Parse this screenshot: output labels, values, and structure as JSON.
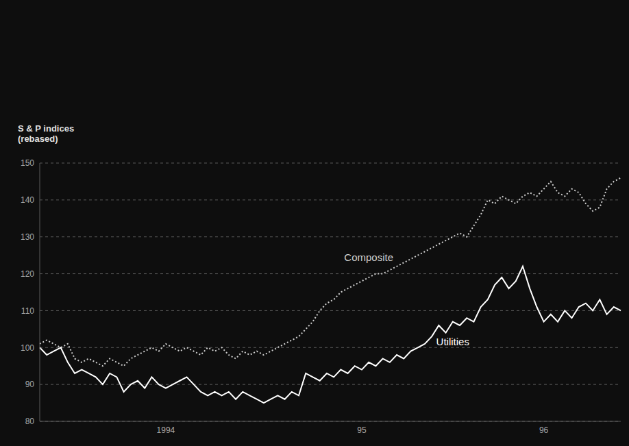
{
  "chart_data": {
    "type": "line",
    "y_label": "S & P indices (rebased)",
    "categories": [
      null,
      null,
      null,
      null,
      null,
      null,
      null,
      null,
      null,
      null,
      null,
      null,
      null,
      null,
      null,
      null,
      null,
      null,
      "1994",
      null,
      null,
      null,
      null,
      null,
      null,
      null,
      null,
      null,
      null,
      null,
      null,
      null,
      null,
      null,
      null,
      null,
      null,
      null,
      null,
      null,
      null,
      null,
      null,
      null,
      null,
      null,
      "95",
      null,
      null,
      null,
      null,
      null,
      null,
      null,
      null,
      null,
      null,
      null,
      null,
      null,
      null,
      null,
      null,
      null,
      null,
      null,
      null,
      null,
      null,
      null,
      null,
      null,
      "96",
      null,
      null,
      null,
      null,
      null,
      null,
      null,
      null,
      null,
      null,
      null
    ],
    "series": [
      {
        "name": "Composite",
        "color": "#cfcfcf",
        "line_style": "dotted",
        "values": [
          101,
          102,
          101,
          100,
          101,
          97,
          96,
          97,
          96,
          95,
          97,
          96,
          95,
          97,
          98,
          99,
          100,
          99,
          101,
          100,
          99,
          100,
          99,
          98,
          100,
          99,
          100,
          98,
          97,
          99,
          98,
          99,
          98,
          99,
          100,
          101,
          102,
          103,
          105,
          107,
          110,
          112,
          113,
          115,
          116,
          117,
          118,
          119,
          120,
          120,
          121,
          122,
          123,
          124,
          125,
          126,
          127,
          128,
          129,
          130,
          131,
          130,
          133,
          136,
          140,
          139,
          141,
          140,
          139,
          141,
          142,
          141,
          143,
          145,
          142,
          141,
          143,
          142,
          139,
          137,
          138,
          143,
          145,
          146
        ]
      },
      {
        "name": "Utilities",
        "color": "#ffffff",
        "line_style": "solid",
        "values": [
          100,
          98,
          99,
          100,
          96,
          93,
          94,
          93,
          92,
          90,
          93,
          92,
          88,
          90,
          91,
          89,
          92,
          90,
          89,
          90,
          91,
          92,
          90,
          88,
          87,
          88,
          87,
          88,
          86,
          88,
          87,
          86,
          85,
          86,
          87,
          86,
          88,
          87,
          93,
          92,
          91,
          93,
          92,
          94,
          93,
          95,
          94,
          96,
          95,
          97,
          96,
          98,
          97,
          99,
          100,
          101,
          103,
          106,
          104,
          107,
          106,
          108,
          107,
          111,
          113,
          117,
          119,
          116,
          118,
          122,
          116,
          111,
          107,
          109,
          107,
          110,
          108,
          111,
          112,
          110,
          113,
          109,
          111,
          110
        ]
      }
    ],
    "ylim": [
      80,
      150
    ],
    "yticks": [
      80,
      90,
      100,
      110,
      120,
      130,
      140,
      150
    ],
    "grid": true
  }
}
